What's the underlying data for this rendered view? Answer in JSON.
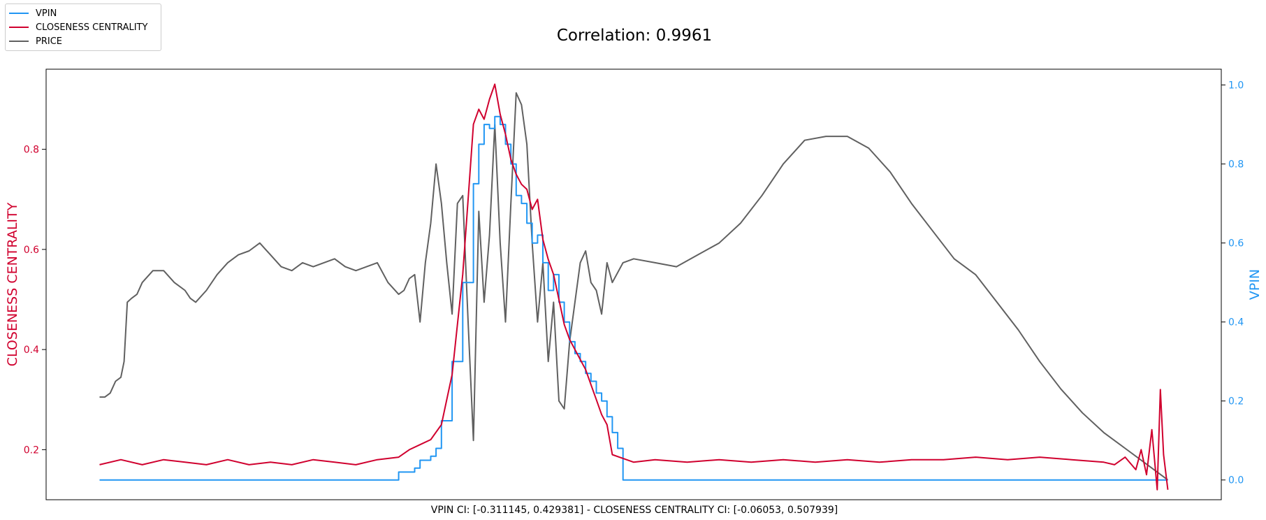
{
  "chart_data": {
    "type": "line",
    "title": "Correlation: 0.9961",
    "xlabel": "VPIN CI: [-0.311145, 0.429381] - CLOSENESS CENTRALITY CI: [-0.06053, 0.507939]",
    "ylabel_left": "CLOSENESS CENTRALITY",
    "ylabel_right": "VPIN",
    "left_axis": {
      "ylim": [
        0.1,
        0.96
      ],
      "ticks": [
        0.2,
        0.4,
        0.6,
        0.8
      ],
      "tick_labels": [
        "0.2",
        "0.4",
        "0.6",
        "0.8"
      ],
      "color": "#d0002e"
    },
    "right_axis": {
      "ylim": [
        -0.05,
        1.04
      ],
      "ticks": [
        0.0,
        0.2,
        0.4,
        0.6,
        0.8,
        1.0
      ],
      "tick_labels": [
        "0.0",
        "0.2",
        "0.4",
        "0.6",
        "0.8",
        "1.0"
      ],
      "color": "#2196f3"
    },
    "xlim": [
      -5,
      105
    ],
    "grid": false,
    "legend_position": "outside-top-left",
    "legend": [
      {
        "label": "VPIN",
        "color": "#2196f3"
      },
      {
        "label": "CLOSENESS CENTRALITY",
        "color": "#d0002e"
      },
      {
        "label": "PRICE",
        "color": "#606060"
      }
    ],
    "series": [
      {
        "name": "VPIN",
        "axis": "right",
        "color": "#2196f3",
        "style": "step",
        "x": [
          0,
          28,
          29.5,
          30,
          31,
          31.5,
          32,
          33,
          34,
          35,
          35.5,
          36,
          36.5,
          37,
          37.5,
          38,
          38.5,
          39,
          39.5,
          40,
          40.5,
          41,
          41.5,
          42,
          42.5,
          43,
          43.5,
          44,
          44.5,
          45,
          45.5,
          46,
          46.5,
          47,
          47.5,
          48,
          48.5,
          49,
          100
        ],
        "y": [
          0.0,
          0.02,
          0.03,
          0.05,
          0.06,
          0.08,
          0.15,
          0.3,
          0.5,
          0.75,
          0.85,
          0.9,
          0.89,
          0.92,
          0.9,
          0.85,
          0.8,
          0.72,
          0.7,
          0.65,
          0.6,
          0.62,
          0.55,
          0.48,
          0.52,
          0.45,
          0.4,
          0.35,
          0.32,
          0.3,
          0.27,
          0.25,
          0.22,
          0.2,
          0.16,
          0.12,
          0.08,
          0.0,
          0.0
        ]
      },
      {
        "name": "CLOSENESS CENTRALITY",
        "axis": "left",
        "color": "#d0002e",
        "x": [
          0,
          2,
          4,
          6,
          8,
          10,
          12,
          14,
          16,
          18,
          20,
          22,
          24,
          26,
          28,
          29,
          30,
          31,
          32,
          33,
          34,
          34.5,
          35,
          35.5,
          36,
          36.5,
          37,
          37.5,
          38,
          38.5,
          39,
          39.5,
          40,
          40.5,
          41,
          41.5,
          42,
          42.5,
          43,
          43.5,
          44,
          44.5,
          45,
          45.5,
          46,
          46.5,
          47,
          47.5,
          48,
          50,
          52,
          55,
          58,
          61,
          64,
          67,
          70,
          73,
          76,
          79,
          82,
          85,
          88,
          91,
          94,
          95,
          96,
          97,
          97.5,
          98,
          98.5,
          99,
          99.3,
          99.6,
          100
        ],
        "y": [
          0.17,
          0.18,
          0.17,
          0.18,
          0.175,
          0.17,
          0.18,
          0.17,
          0.175,
          0.17,
          0.18,
          0.175,
          0.17,
          0.18,
          0.185,
          0.2,
          0.21,
          0.22,
          0.25,
          0.35,
          0.55,
          0.7,
          0.85,
          0.88,
          0.86,
          0.9,
          0.93,
          0.87,
          0.83,
          0.78,
          0.75,
          0.73,
          0.72,
          0.68,
          0.7,
          0.62,
          0.58,
          0.55,
          0.5,
          0.45,
          0.42,
          0.4,
          0.38,
          0.36,
          0.33,
          0.3,
          0.27,
          0.25,
          0.19,
          0.175,
          0.18,
          0.175,
          0.18,
          0.175,
          0.18,
          0.175,
          0.18,
          0.175,
          0.18,
          0.18,
          0.185,
          0.18,
          0.185,
          0.18,
          0.175,
          0.17,
          0.185,
          0.16,
          0.2,
          0.15,
          0.24,
          0.12,
          0.32,
          0.19,
          0.12
        ]
      },
      {
        "name": "PRICE",
        "axis": "right",
        "color": "#606060",
        "x": [
          0,
          0.5,
          1,
          1.5,
          2,
          2.3,
          2.6,
          3,
          3.5,
          4,
          5,
          6,
          7,
          8,
          8.5,
          9,
          10,
          11,
          12,
          13,
          14,
          15,
          16,
          17,
          18,
          19,
          20,
          21,
          22,
          23,
          24,
          25,
          26,
          27,
          28,
          28.5,
          29,
          29.5,
          30,
          30.5,
          31,
          31.5,
          32,
          32.5,
          33,
          33.5,
          34,
          34.5,
          35,
          35.5,
          36,
          36.5,
          37,
          37.5,
          38,
          38.5,
          39,
          39.5,
          40,
          40.5,
          41,
          41.5,
          42,
          42.5,
          43,
          43.5,
          44,
          44.5,
          45,
          45.5,
          46,
          46.5,
          47,
          47.5,
          48,
          49,
          50,
          52,
          54,
          56,
          58,
          60,
          62,
          64,
          66,
          68,
          70,
          72,
          74,
          76,
          78,
          80,
          82,
          84,
          86,
          88,
          90,
          92,
          94,
          96,
          98,
          99,
          99.5,
          100
        ],
        "y": [
          0.21,
          0.21,
          0.22,
          0.25,
          0.26,
          0.3,
          0.45,
          0.46,
          0.47,
          0.5,
          0.53,
          0.53,
          0.5,
          0.48,
          0.46,
          0.45,
          0.48,
          0.52,
          0.55,
          0.57,
          0.58,
          0.6,
          0.57,
          0.54,
          0.53,
          0.55,
          0.54,
          0.55,
          0.56,
          0.54,
          0.53,
          0.54,
          0.55,
          0.5,
          0.47,
          0.48,
          0.51,
          0.52,
          0.4,
          0.55,
          0.65,
          0.8,
          0.7,
          0.55,
          0.42,
          0.7,
          0.72,
          0.4,
          0.1,
          0.68,
          0.45,
          0.62,
          0.9,
          0.6,
          0.4,
          0.7,
          0.98,
          0.95,
          0.85,
          0.6,
          0.4,
          0.55,
          0.3,
          0.45,
          0.2,
          0.18,
          0.35,
          0.45,
          0.55,
          0.58,
          0.5,
          0.48,
          0.42,
          0.55,
          0.5,
          0.55,
          0.56,
          0.55,
          0.54,
          0.57,
          0.6,
          0.65,
          0.72,
          0.8,
          0.86,
          0.87,
          0.87,
          0.84,
          0.78,
          0.7,
          0.63,
          0.56,
          0.52,
          0.45,
          0.38,
          0.3,
          0.23,
          0.17,
          0.12,
          0.08,
          0.04,
          0.02,
          0.01,
          0.0
        ]
      }
    ]
  }
}
